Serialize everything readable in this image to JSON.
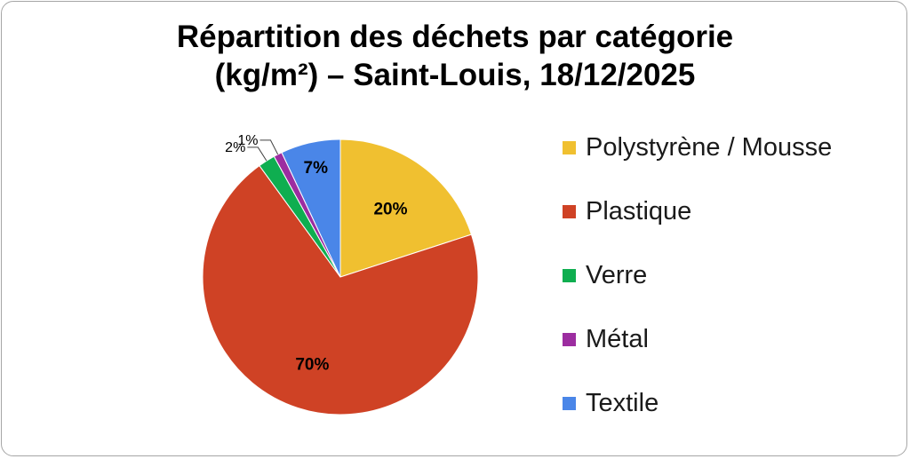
{
  "chart_data": {
    "type": "pie",
    "title_line1": "Répartition des déchets par catégorie",
    "title_line2": "(kg/m²) – Saint-Louis, 18/12/2025",
    "categories": [
      "Polystyrène / Mousse",
      "Plastique",
      "Verre",
      "Métal",
      "Textile"
    ],
    "values": [
      20,
      70,
      2,
      1,
      7
    ],
    "data_labels": [
      "20%",
      "70%",
      "2%",
      "1%",
      "7%"
    ],
    "colors": [
      "#f0c030",
      "#cf4225",
      "#0fae50",
      "#9c2da0",
      "#4a86e8"
    ],
    "legend_position": "right"
  }
}
